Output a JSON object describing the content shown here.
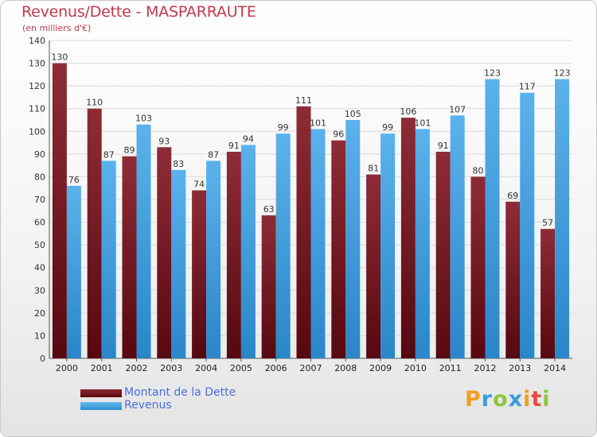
{
  "title": "Revenus/Dette - MASPARRAUTE",
  "subtitle": "(en milliers d'€)",
  "legend": {
    "debt_label": "Montant de la Dette",
    "revenue_label": "Revenus"
  },
  "logo": {
    "text": "Proxiti",
    "letters": [
      "P",
      "r",
      "o",
      "x",
      "i",
      "t",
      "i"
    ],
    "colors": [
      "#f0a020",
      "#3a9bd9",
      "#8cc63f",
      "#3a9bd9",
      "#f0a020",
      "#e84c3d",
      "#8cc63f"
    ]
  },
  "colors": {
    "debt": "#7a1c24",
    "revenue": "#4aa3e4",
    "title": "#c0394a"
  },
  "chart_data": {
    "type": "bar",
    "categories": [
      "2000",
      "2001",
      "2002",
      "2003",
      "2004",
      "2005",
      "2006",
      "2007",
      "2008",
      "2009",
      "2010",
      "2011",
      "2012",
      "2013",
      "2014"
    ],
    "series": [
      {
        "name": "Montant de la Dette",
        "values": [
          130,
          110,
          89,
          93,
          74,
          91,
          63,
          111,
          96,
          81,
          106,
          91,
          80,
          69,
          57
        ]
      },
      {
        "name": "Revenus",
        "values": [
          76,
          87,
          103,
          83,
          87,
          94,
          99,
          101,
          105,
          99,
          101,
          107,
          123,
          117,
          123
        ]
      }
    ],
    "ylim": [
      0,
      140
    ],
    "yticks": [
      0,
      10,
      20,
      30,
      40,
      50,
      60,
      70,
      80,
      90,
      100,
      110,
      120,
      130,
      140
    ],
    "grid": true,
    "legend_position": "bottom-left"
  }
}
